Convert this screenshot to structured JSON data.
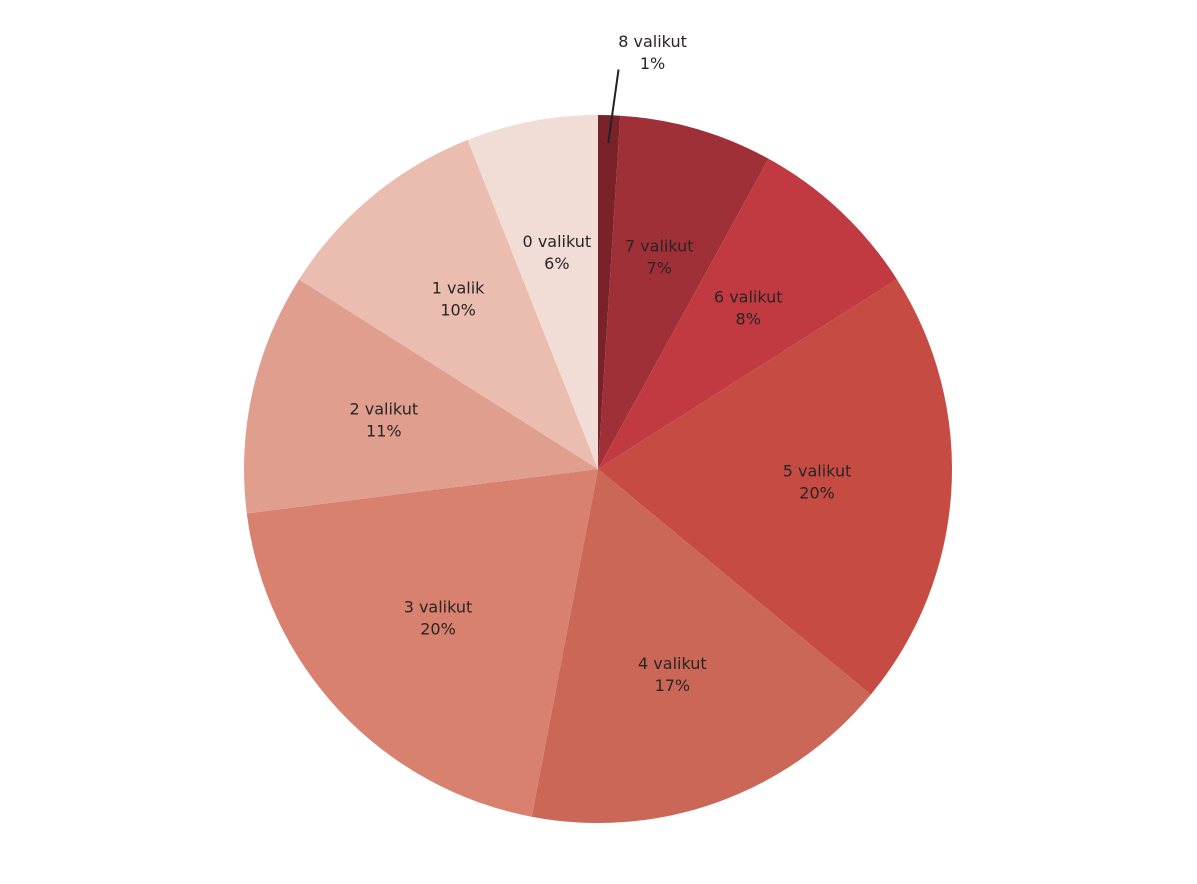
{
  "chart_data": {
    "type": "pie",
    "categories": [
      "8 valikut",
      "7 valikut",
      "6 valikut",
      "5 valikut",
      "4 valikut",
      "3 valikut",
      "2 valikut",
      "1 valik",
      "0 valikut"
    ],
    "values": [
      1,
      7,
      8,
      20,
      17,
      20,
      11,
      10,
      6
    ],
    "value_labels": [
      "1%",
      "7%",
      "8%",
      "20%",
      "17%",
      "20%",
      "11%",
      "10%",
      "6%"
    ],
    "colors": [
      "#7a2229",
      "#a03037",
      "#c13a41",
      "#c64b43",
      "#cb6757",
      "#d8816f",
      "#e09e8f",
      "#ebbdb1",
      "#f2ddd6"
    ]
  }
}
